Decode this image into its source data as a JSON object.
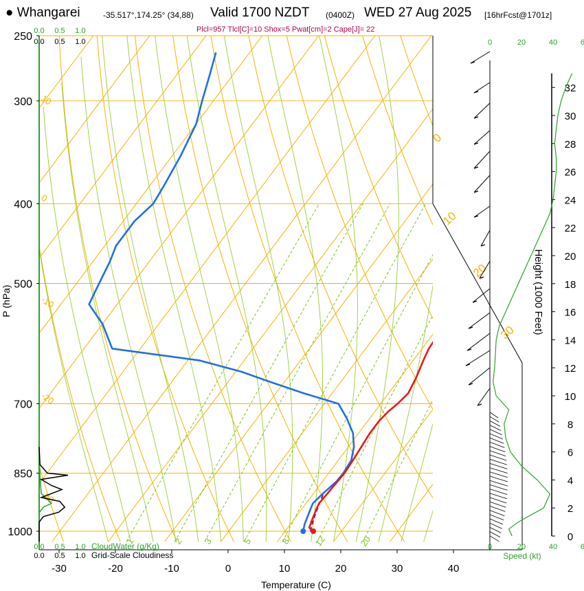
{
  "header": {
    "bullet": "●",
    "location": "Whangarei",
    "coords": "-35.517°,174.25° (34,88)",
    "valid": "Valid 1700 NZDT",
    "utc": "(0400Z)",
    "date": "WED 27 Aug 2025",
    "forecast": "[16hrFcst@1701z]",
    "params": "Plcl=957 Tlcl[C]=10 Shox=5 Pwat[cm]=2 Cape[J]= 22"
  },
  "colors": {
    "isotherm": "#f0b400",
    "dry_adiabat": "#f0b400",
    "moist_adiabat": "#9acd32",
    "mixing_ratio": "#7cc420",
    "temperature": "#e31a1c",
    "dewpoint": "#1f6fe0",
    "parcel": "#8b1a5a",
    "cloud": "#2ca02c",
    "params_text": "#b0004f"
  },
  "chart_data": {
    "type": "skew-t",
    "xlabel": "Temperature (C)",
    "ylabel": "P (hPa)",
    "right_label": "Height (1000 Feet)",
    "speed_label": "Speed (kt)",
    "x_ticks": [
      "-30",
      "-20",
      "-10",
      "0",
      "10",
      "20",
      "30",
      "40"
    ],
    "x_tick_values": [
      -30,
      -20,
      -10,
      0,
      10,
      20,
      30,
      40
    ],
    "xlim": [
      -34,
      48
    ],
    "pressure_ticks": [
      "250",
      "300",
      "400",
      "500",
      "700",
      "850",
      "1000"
    ],
    "pressure_tick_values": [
      250,
      300,
      400,
      500,
      700,
      850,
      1000
    ],
    "height_ticks": [
      "0",
      "2",
      "4",
      "6",
      "8",
      "10",
      "12",
      "14",
      "16",
      "18",
      "20",
      "22",
      "24",
      "26",
      "28",
      "30",
      "32"
    ],
    "height_tick_values": [
      0,
      2,
      4,
      6,
      8,
      10,
      12,
      14,
      16,
      18,
      20,
      22,
      24,
      26,
      28,
      30,
      32
    ],
    "ylim_hPa": [
      1030,
      250
    ],
    "isotherm_labels": [
      {
        "t": 10,
        "label": "10"
      },
      {
        "t": 0,
        "label": "0"
      },
      {
        "t": -10,
        "label": "-10"
      },
      {
        "t": -20,
        "label": "-20"
      },
      {
        "t": -30,
        "label": "-30"
      }
    ],
    "isotherm_labels_right": [
      {
        "t": 0,
        "label": "0"
      },
      {
        "t": 10,
        "label": "10"
      },
      {
        "t": 20,
        "label": "20"
      },
      {
        "t": 30,
        "label": "30"
      }
    ],
    "mixing_ratio_labels": [
      {
        "w": 1,
        "label": "1"
      },
      {
        "w": 2,
        "label": "2"
      },
      {
        "w": 3,
        "label": "3"
      },
      {
        "w": 5,
        "label": "5"
      },
      {
        "w": 8,
        "label": "8"
      },
      {
        "w": 12,
        "label": "12"
      },
      {
        "w": 20,
        "label": "20"
      }
    ],
    "temperature": {
      "name": "Temperature",
      "points": [
        [
          1000,
          15.0
        ],
        [
          990,
          13.8
        ],
        [
          970,
          13.3
        ],
        [
          940,
          12.6
        ],
        [
          925,
          12.3
        ],
        [
          900,
          12.5
        ],
        [
          880,
          12.6
        ],
        [
          850,
          12.8
        ],
        [
          820,
          12.6
        ],
        [
          790,
          12.3
        ],
        [
          760,
          12.0
        ],
        [
          735,
          12.0
        ],
        [
          715,
          12.4
        ],
        [
          700,
          13.0
        ],
        [
          680,
          13.5
        ],
        [
          650,
          12.8
        ],
        [
          620,
          11.8
        ],
        [
          600,
          11.2
        ],
        [
          580,
          11.0
        ],
        [
          550,
          10.0
        ],
        [
          500,
          6.2
        ],
        [
          450,
          2.0
        ],
        [
          400,
          -2.8
        ],
        [
          350,
          -8.2
        ],
        [
          330,
          -10.2
        ],
        [
          300,
          -13.8
        ],
        [
          280,
          -15.5
        ],
        [
          260,
          -17.0
        ]
      ]
    },
    "dewpoint": {
      "name": "Dewpoint",
      "points": [
        [
          1000,
          13.2
        ],
        [
          980,
          12.5
        ],
        [
          950,
          11.8
        ],
        [
          925,
          11.2
        ],
        [
          900,
          11.7
        ],
        [
          870,
          12.5
        ],
        [
          850,
          12.6
        ],
        [
          820,
          12.3
        ],
        [
          790,
          11.0
        ],
        [
          760,
          9.0
        ],
        [
          730,
          6.0
        ],
        [
          700,
          2.5
        ],
        [
          680,
          -5.0
        ],
        [
          660,
          -12.0
        ],
        [
          640,
          -19.0
        ],
        [
          620,
          -28.0
        ],
        [
          600,
          -45.0
        ],
        [
          560,
          -50.0
        ],
        [
          530,
          -55.0
        ],
        [
          500,
          -56.0
        ],
        [
          470,
          -57.0
        ],
        [
          450,
          -58.0
        ],
        [
          420,
          -58.0
        ],
        [
          400,
          -57.0
        ],
        [
          380,
          -57.5
        ],
        [
          350,
          -58.5
        ],
        [
          320,
          -60.0
        ],
        [
          300,
          -62.0
        ],
        [
          280,
          -64.0
        ],
        [
          262,
          -66.0
        ]
      ]
    },
    "parcel": {
      "name": "Parcel",
      "points": [
        [
          1000,
          14.5
        ],
        [
          975,
          13.7
        ],
        [
          957,
          13.2
        ],
        [
          930,
          12.5
        ],
        [
          900,
          11.8
        ]
      ]
    },
    "cloud_water": {
      "label": "CloudWater (g/Kg)",
      "axis_ticks": [
        "0.0",
        "0.5",
        "1.0"
      ],
      "axis_tick_values": [
        0,
        0.5,
        1.0
      ],
      "profile": [
        [
          250,
          0
        ],
        [
          800,
          0
        ],
        [
          860,
          0.02
        ],
        [
          900,
          0.05
        ],
        [
          925,
          0.3
        ],
        [
          935,
          0.1
        ],
        [
          950,
          0.0
        ],
        [
          1030,
          0
        ]
      ]
    },
    "cloudiness": {
      "label": "Grid-Scale Cloudiness",
      "axis_ticks": [
        "0.0",
        "0.5",
        "1.0"
      ],
      "axis_tick_values": [
        0,
        0.5,
        1.0
      ],
      "profile": [
        [
          790,
          0
        ],
        [
          830,
          0.02
        ],
        [
          850,
          0.2
        ],
        [
          855,
          0.7
        ],
        [
          865,
          0.05
        ],
        [
          880,
          0.3
        ],
        [
          890,
          0.55
        ],
        [
          900,
          0.3
        ],
        [
          910,
          0.05
        ],
        [
          920,
          0.5
        ],
        [
          935,
          0.62
        ],
        [
          948,
          0.48
        ],
        [
          960,
          0.1
        ],
        [
          975,
          0
        ],
        [
          1030,
          0
        ]
      ]
    },
    "wind_speed": {
      "label": "Speed (kt)",
      "axis_ticks": [
        "0",
        "20",
        "40",
        "60"
      ],
      "axis_tick_values": [
        0,
        20,
        40,
        60
      ],
      "profile_by_height_kft": [
        [
          0,
          14
        ],
        [
          0.5,
          12
        ],
        [
          1,
          18
        ],
        [
          2,
          34
        ],
        [
          3,
          38
        ],
        [
          4,
          30
        ],
        [
          5,
          20
        ],
        [
          6,
          13
        ],
        [
          7,
          10
        ],
        [
          8,
          9
        ],
        [
          9,
          12
        ],
        [
          10,
          4
        ],
        [
          11,
          2
        ],
        [
          12,
          3
        ],
        [
          14,
          4
        ],
        [
          15,
          6
        ],
        [
          16,
          10
        ],
        [
          17,
          14
        ],
        [
          18,
          18
        ],
        [
          19,
          22
        ],
        [
          20,
          26
        ],
        [
          21,
          30
        ],
        [
          22,
          34
        ],
        [
          23,
          38
        ],
        [
          24,
          40
        ],
        [
          25,
          41
        ],
        [
          26,
          42
        ],
        [
          27,
          42
        ],
        [
          28,
          41
        ],
        [
          29,
          42
        ],
        [
          30,
          43
        ],
        [
          31,
          45
        ],
        [
          32,
          48
        ],
        [
          33,
          52
        ]
      ]
    }
  }
}
